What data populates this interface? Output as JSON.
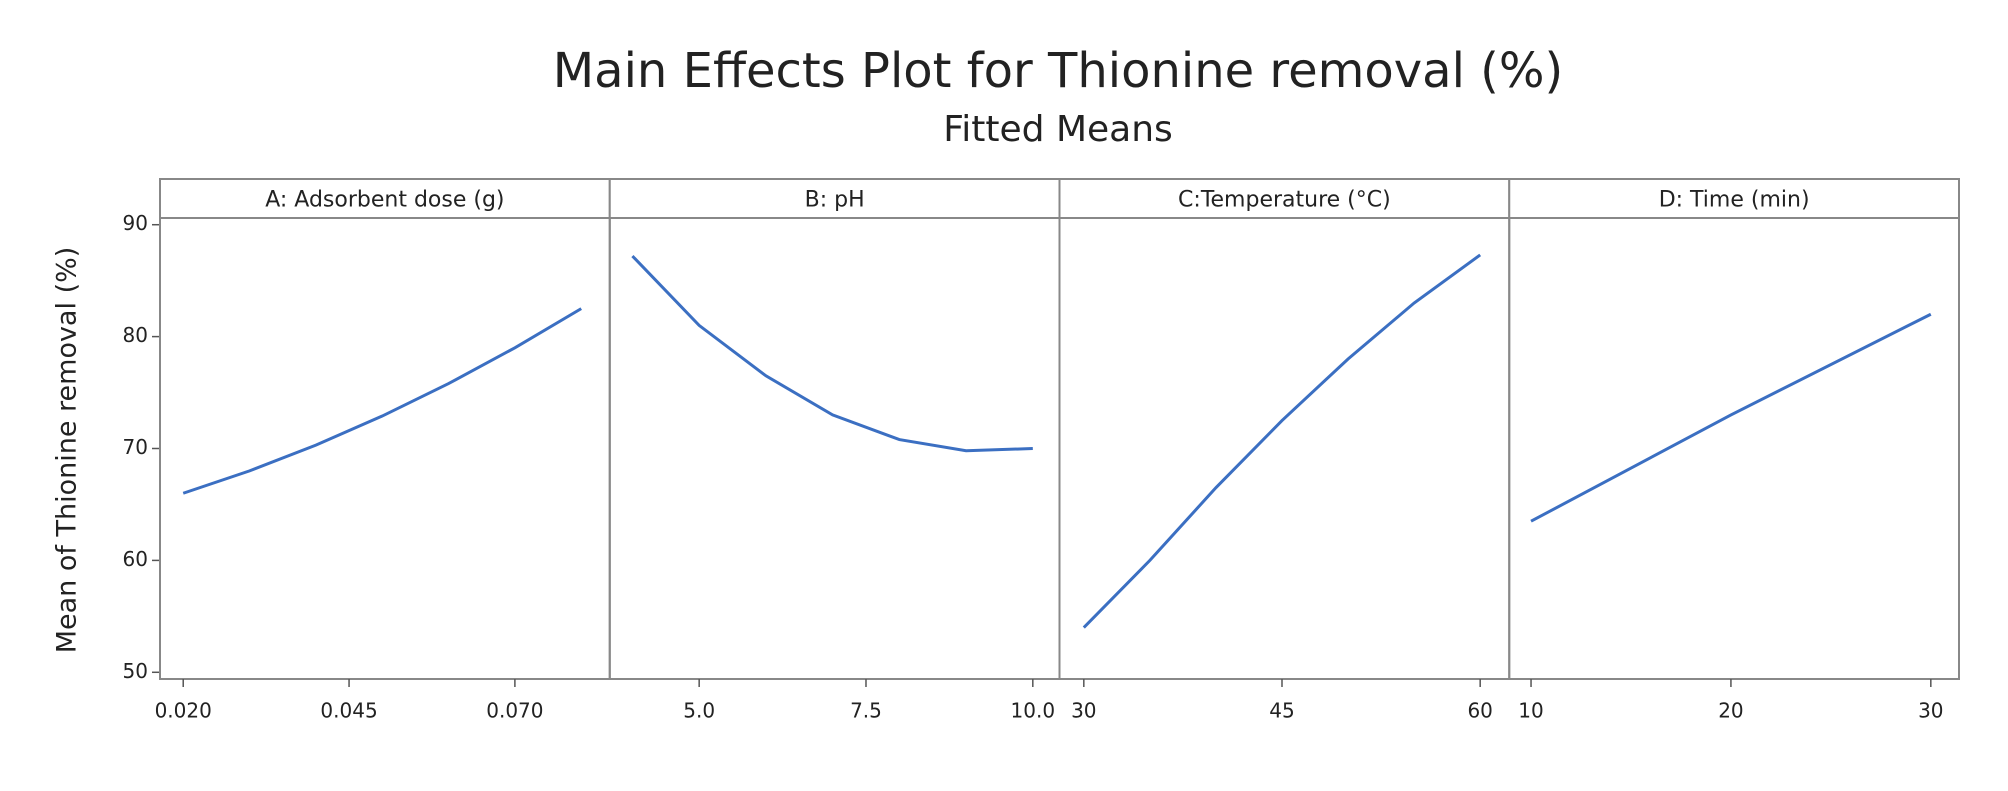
{
  "chart_data": {
    "type": "line",
    "title": "Main Effects Plot for Thionine removal (%)",
    "subtitle": "Fitted Means",
    "y_label": "Mean of Thionine removal (%)",
    "color": "#3b6fc2",
    "ylim": [
      49.4,
      90.6
    ],
    "yticks": [
      50,
      60,
      70,
      80,
      90
    ],
    "panels": [
      {
        "strip": "A: Adsorbent dose (g)",
        "x": [
          0.02,
          0.03,
          0.04,
          0.05,
          0.06,
          0.07,
          0.08
        ],
        "values": [
          66,
          68,
          70.3,
          72.9,
          75.8,
          79,
          82.5
        ],
        "xlim": [
          0.0165,
          0.0843
        ],
        "xticks": [
          {
            "value": 0.02,
            "label": "0.020"
          },
          {
            "value": 0.045,
            "label": "0.045"
          },
          {
            "value": 0.07,
            "label": "0.070"
          }
        ]
      },
      {
        "strip": "B: pH",
        "x": [
          4,
          5,
          6,
          7,
          8,
          9,
          10
        ],
        "values": [
          87.2,
          81,
          76.5,
          73,
          70.8,
          69.8,
          70
        ],
        "xlim": [
          3.66,
          10.4
        ],
        "xticks": [
          {
            "value": 5,
            "label": "5.0"
          },
          7.5,
          {
            "value": 10,
            "label": "10.0"
          }
        ]
      },
      {
        "strip": "C:Temperature (°C)",
        "x": [
          30,
          35,
          40,
          45,
          50,
          55,
          60
        ],
        "values": [
          54,
          60,
          66.5,
          72.5,
          78,
          83,
          87.3
        ],
        "xlim": [
          28.16,
          62.2
        ],
        "xticks": [
          30,
          45,
          60
        ]
      },
      {
        "strip": "D: Time  (min)",
        "x": [
          10,
          20,
          30
        ],
        "values": [
          63.5,
          73,
          82
        ],
        "xlim": [
          8.91,
          31.41
        ],
        "xticks": [
          10,
          20,
          30
        ]
      }
    ]
  }
}
